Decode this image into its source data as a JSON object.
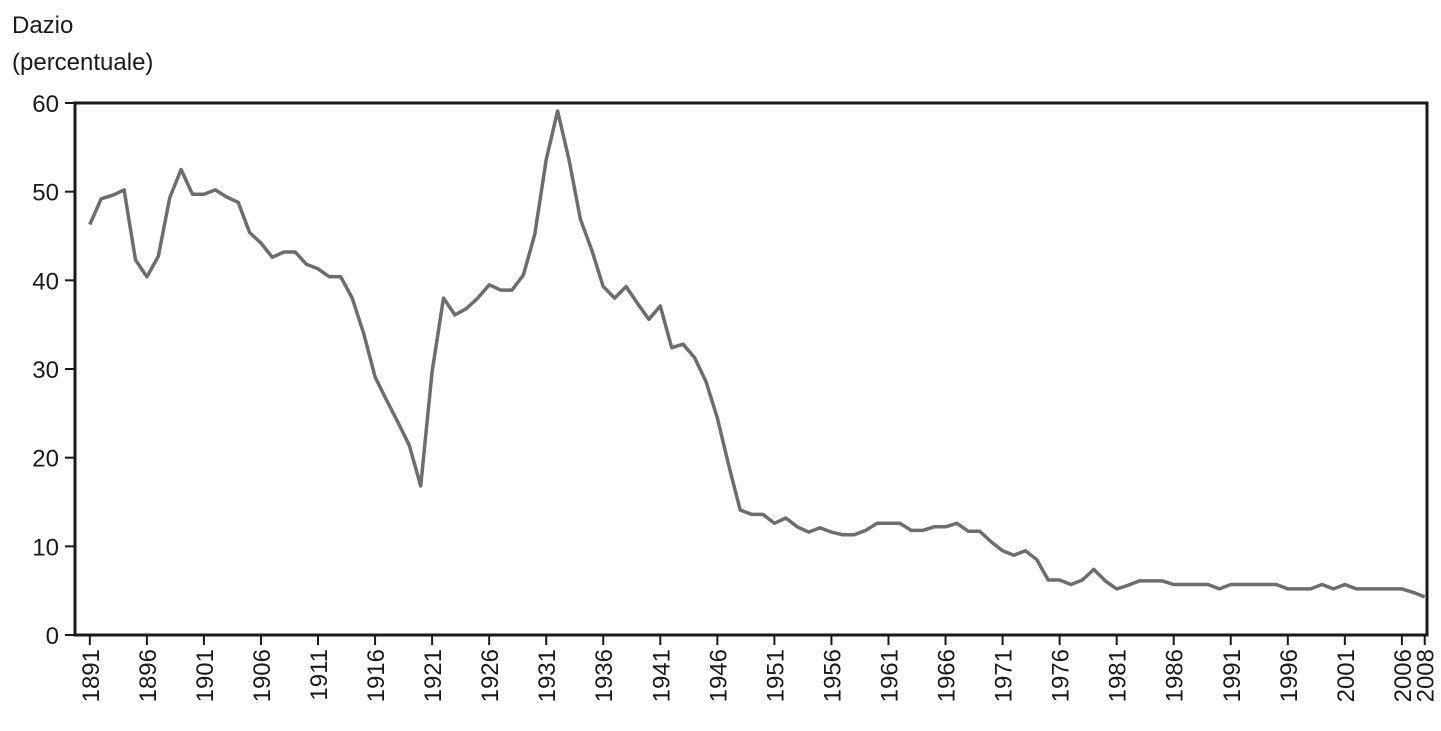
{
  "chart_data": {
    "type": "line",
    "y_label": [
      "Dazio",
      "(percentuale)"
    ],
    "x": [
      1891,
      1892,
      1893,
      1894,
      1895,
      1896,
      1897,
      1898,
      1899,
      1900,
      1901,
      1902,
      1903,
      1904,
      1905,
      1906,
      1907,
      1908,
      1909,
      1910,
      1911,
      1912,
      1913,
      1914,
      1915,
      1916,
      1917,
      1918,
      1919,
      1920,
      1921,
      1922,
      1923,
      1924,
      1925,
      1926,
      1927,
      1928,
      1929,
      1930,
      1931,
      1932,
      1933,
      1934,
      1935,
      1936,
      1937,
      1938,
      1939,
      1940,
      1941,
      1942,
      1943,
      1944,
      1945,
      1946,
      1947,
      1948,
      1949,
      1950,
      1951,
      1952,
      1953,
      1954,
      1955,
      1956,
      1957,
      1958,
      1959,
      1960,
      1961,
      1962,
      1963,
      1964,
      1965,
      1966,
      1967,
      1968,
      1969,
      1970,
      1971,
      1972,
      1973,
      1974,
      1975,
      1976,
      1977,
      1978,
      1979,
      1980,
      1981,
      1982,
      1983,
      1984,
      1985,
      1986,
      1987,
      1988,
      1989,
      1990,
      1991,
      1992,
      1993,
      1994,
      1995,
      1996,
      1997,
      1998,
      1999,
      2000,
      2001,
      2002,
      2003,
      2004,
      2005,
      2006,
      2007,
      2008
    ],
    "values": [
      46.3,
      49.2,
      49.6,
      50.2,
      42.3,
      40.4,
      42.7,
      49.3,
      52.5,
      49.7,
      49.7,
      50.2,
      49.4,
      48.8,
      45.4,
      44.2,
      42.6,
      43.2,
      43.2,
      41.8,
      41.3,
      40.4,
      40.4,
      38.0,
      34.0,
      29.1,
      26.5,
      24.0,
      21.4,
      16.8,
      29.7,
      38.0,
      36.1,
      36.8,
      38.0,
      39.5,
      38.9,
      38.9,
      40.6,
      45.2,
      53.6,
      59.1,
      53.6,
      46.9,
      43.4,
      39.3,
      38.0,
      39.3,
      37.4,
      35.6,
      37.1,
      32.4,
      32.8,
      31.3,
      28.6,
      24.5,
      19.1,
      14.1,
      13.6,
      13.6,
      12.6,
      13.2,
      12.2,
      11.6,
      12.1,
      11.6,
      11.3,
      11.3,
      11.8,
      12.6,
      12.6,
      12.6,
      11.8,
      11.8,
      12.2,
      12.2,
      12.6,
      11.7,
      11.7,
      10.5,
      9.5,
      9.0,
      9.5,
      8.5,
      6.2,
      6.2,
      5.7,
      6.2,
      7.4,
      6.1,
      5.2,
      5.6,
      6.1,
      6.1,
      6.1,
      5.7,
      5.7,
      5.7,
      5.7,
      5.2,
      5.7,
      5.7,
      5.7,
      5.7,
      5.7,
      5.2,
      5.2,
      5.2,
      5.7,
      5.2,
      5.7,
      5.2,
      5.2,
      5.2,
      5.2,
      5.2,
      4.8,
      4.3
    ],
    "color": "#6d6d6d",
    "xlim": [
      1889.7,
      2008.2
    ],
    "xticks": [
      1891,
      1896,
      1901,
      1906,
      1911,
      1916,
      1921,
      1926,
      1931,
      1936,
      1941,
      1946,
      1951,
      1956,
      1961,
      1966,
      1971,
      1976,
      1981,
      1986,
      1991,
      1996,
      2001,
      2006,
      2008
    ],
    "ylim": [
      0,
      60
    ],
    "yticks": [
      0,
      10,
      20,
      30,
      40,
      50,
      60
    ],
    "grid": false
  }
}
